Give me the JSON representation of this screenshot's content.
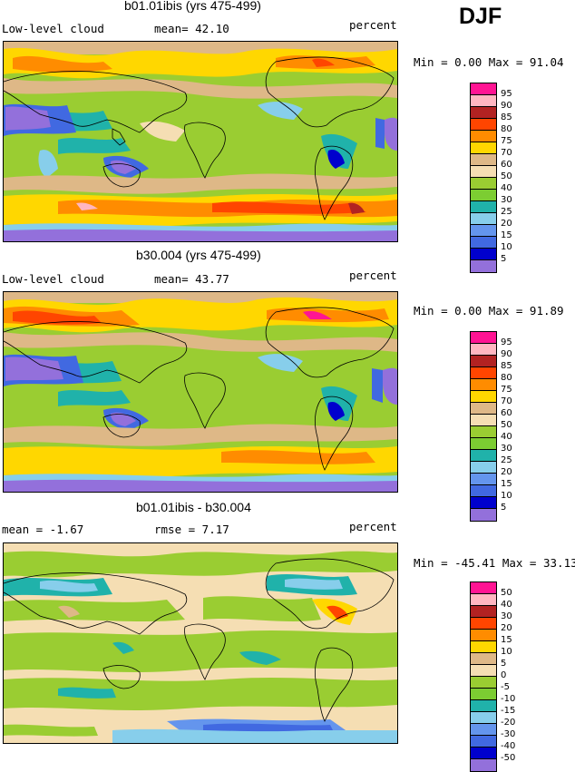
{
  "season": "DJF",
  "panels": [
    {
      "title": "b01.01ibis (yrs 475-499)",
      "left_label": "Low-level cloud",
      "center_label": "mean=  42.10",
      "right_label": "percent",
      "stats": "Min =    0.00 Max =   91.04",
      "field": "cloud"
    },
    {
      "title": "b30.004 (yrs 475-499)",
      "left_label": "Low-level cloud",
      "center_label": "mean=  43.77",
      "right_label": "percent",
      "stats": "Min =    0.00 Max =   91.89",
      "field": "cloud"
    },
    {
      "title": "b01.01ibis - b30.004",
      "left_label": "mean =  -1.67",
      "center_label": "rmse =   7.17",
      "right_label": "percent",
      "stats": "Min = -45.41 Max =  33.13",
      "field": "diff"
    }
  ],
  "colorbars": {
    "cloud": {
      "labels": [
        "95",
        "90",
        "85",
        "80",
        "75",
        "70",
        "60",
        "50",
        "40",
        "30",
        "25",
        "20",
        "15",
        "10",
        "5"
      ],
      "colors": [
        "#ff1493",
        "#ffb6c1",
        "#b22222",
        "#ff4500",
        "#ff8c00",
        "#ffd700",
        "#deb887",
        "#f5deb3",
        "#9acd32",
        "#7ccd32",
        "#20b2aa",
        "#87ceeb",
        "#6495ed",
        "#4169e1",
        "#0000cd",
        "#9370db"
      ]
    },
    "diff": {
      "labels": [
        "50",
        "40",
        "30",
        "20",
        "15",
        "10",
        "5",
        "0",
        "-5",
        "-10",
        "-15",
        "-20",
        "-30",
        "-40",
        "-50"
      ],
      "colors": [
        "#ff1493",
        "#ffb6c1",
        "#b22222",
        "#ff4500",
        "#ff8c00",
        "#ffd700",
        "#deb887",
        "#f5deb3",
        "#9acd32",
        "#7ccd32",
        "#20b2aa",
        "#87ceeb",
        "#6495ed",
        "#4169e1",
        "#0000cd",
        "#9370db"
      ]
    }
  }
}
